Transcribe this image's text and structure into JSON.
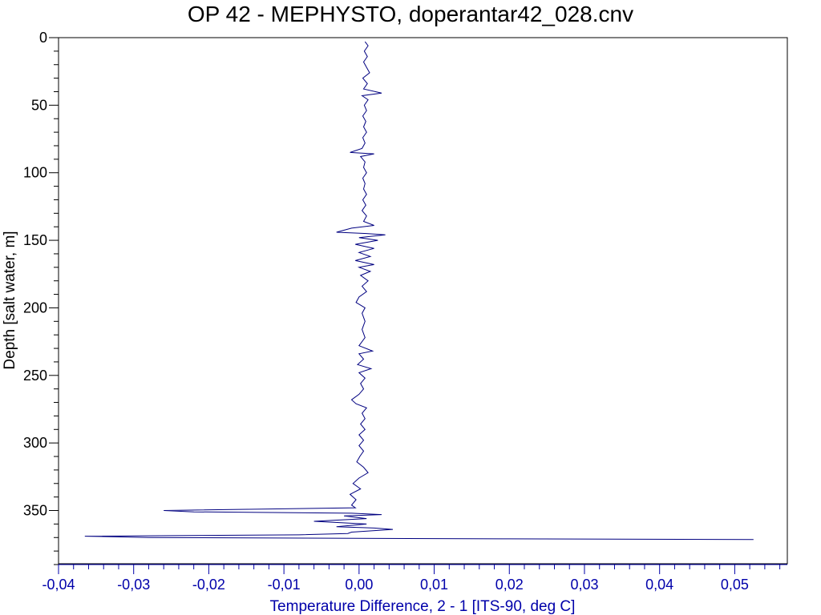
{
  "chart_data": {
    "type": "line",
    "title": "OP 42 - MEPHYSTO, doperantar42_028.cnv",
    "xlabel": "Temperature Difference, 2 - 1 [ITS-90, deg C]",
    "ylabel": "Depth [salt water, m]",
    "xlim": [
      -0.04,
      0.057
    ],
    "ylim": [
      390,
      0
    ],
    "y_inverted": true,
    "x_ticks": [
      -0.04,
      -0.03,
      -0.02,
      -0.01,
      0.0,
      0.01,
      0.02,
      0.03,
      0.04,
      0.05
    ],
    "x_tick_labels": [
      "-0,04",
      "-0,03",
      "-0,02",
      "-0,01",
      "0,00",
      "0,01",
      "0,02",
      "0,03",
      "0,04",
      "0,05"
    ],
    "y_ticks": [
      0,
      50,
      100,
      150,
      200,
      250,
      300,
      350
    ],
    "y_tick_labels": [
      "0",
      "50",
      "100",
      "150",
      "200",
      "250",
      "300",
      "350"
    ],
    "grid": false,
    "colors": {
      "line": "#000080",
      "x_axis": "#0000AA",
      "y_axis": "#000000"
    },
    "series": [
      {
        "points": [
          [
            0.0008,
            3
          ],
          [
            0.0012,
            6
          ],
          [
            0.0007,
            10
          ],
          [
            0.0011,
            14
          ],
          [
            0.0006,
            18
          ],
          [
            0.001,
            22
          ],
          [
            0.0014,
            26
          ],
          [
            0.0005,
            30
          ],
          [
            0.0011,
            34
          ],
          [
            0.0006,
            38
          ],
          [
            0.003,
            41
          ],
          [
            0.0004,
            43
          ],
          [
            0.0012,
            46
          ],
          [
            0.0007,
            50
          ],
          [
            0.001,
            54
          ],
          [
            0.0005,
            58
          ],
          [
            0.0009,
            62
          ],
          [
            0.0006,
            66
          ],
          [
            0.001,
            70
          ],
          [
            0.0005,
            74
          ],
          [
            0.0008,
            78
          ],
          [
            0.0004,
            82
          ],
          [
            -0.0012,
            85
          ],
          [
            0.002,
            86
          ],
          [
            0.0002,
            88
          ],
          [
            0.0008,
            92
          ],
          [
            0.0006,
            96
          ],
          [
            0.001,
            100
          ],
          [
            0.0005,
            104
          ],
          [
            0.0008,
            108
          ],
          [
            0.0006,
            112
          ],
          [
            0.001,
            116
          ],
          [
            0.0005,
            120
          ],
          [
            0.0009,
            124
          ],
          [
            0.0004,
            128
          ],
          [
            0.001,
            132
          ],
          [
            0.0006,
            136
          ],
          [
            0.002,
            139
          ],
          [
            -0.001,
            141
          ],
          [
            -0.003,
            144
          ],
          [
            0.001,
            145
          ],
          [
            0.0035,
            146
          ],
          [
            0.0,
            148
          ],
          [
            0.0025,
            150
          ],
          [
            -0.0005,
            153
          ],
          [
            0.002,
            156
          ],
          [
            0.0,
            159
          ],
          [
            0.0015,
            162
          ],
          [
            -0.0005,
            165
          ],
          [
            0.002,
            168
          ],
          [
            0.0,
            170
          ],
          [
            0.0015,
            173
          ],
          [
            0.0002,
            176
          ],
          [
            0.0012,
            180
          ],
          [
            0.0004,
            184
          ],
          [
            0.001,
            188
          ],
          [
            0.0,
            192
          ],
          [
            -0.0004,
            196
          ],
          [
            0.0008,
            200
          ],
          [
            0.0004,
            204
          ],
          [
            0.0008,
            210
          ],
          [
            0.0004,
            216
          ],
          [
            0.0008,
            222
          ],
          [
            0.0,
            228
          ],
          [
            0.0018,
            232
          ],
          [
            0.0,
            234
          ],
          [
            0.0006,
            238
          ],
          [
            -0.0002,
            242
          ],
          [
            0.0016,
            245
          ],
          [
            0.0,
            248
          ],
          [
            0.0008,
            252
          ],
          [
            0.0002,
            256
          ],
          [
            0.0006,
            260
          ],
          [
            0.0,
            264
          ],
          [
            -0.001,
            268
          ],
          [
            -0.0004,
            271
          ],
          [
            0.001,
            274
          ],
          [
            0.0004,
            278
          ],
          [
            0.0008,
            282
          ],
          [
            0.0002,
            286
          ],
          [
            0.0008,
            290
          ],
          [
            0.0,
            294
          ],
          [
            0.0006,
            298
          ],
          [
            0.0,
            302
          ],
          [
            0.0006,
            306
          ],
          [
            0.0001,
            310
          ],
          [
            -0.0003,
            314
          ],
          [
            0.0006,
            318
          ],
          [
            0.0012,
            322
          ],
          [
            0.0,
            326
          ],
          [
            -0.0008,
            330
          ],
          [
            0.0002,
            334
          ],
          [
            -0.0012,
            338
          ],
          [
            -0.0004,
            342
          ],
          [
            -0.001,
            346
          ],
          [
            -0.0005,
            348
          ],
          [
            -0.026,
            350
          ],
          [
            -0.022,
            351
          ],
          [
            -0.001,
            352
          ],
          [
            0.003,
            353
          ],
          [
            -0.002,
            354
          ],
          [
            0.001,
            356
          ],
          [
            -0.006,
            358
          ],
          [
            0.001,
            360
          ],
          [
            -0.003,
            362
          ],
          [
            0.002,
            363
          ],
          [
            0.0045,
            364
          ],
          [
            -0.001,
            366
          ],
          [
            -0.0015,
            367
          ],
          [
            -0.008,
            368
          ],
          [
            -0.0365,
            369
          ],
          [
            -0.028,
            370
          ],
          [
            0.019,
            371
          ],
          [
            0.0525,
            371.5
          ]
        ]
      }
    ]
  }
}
